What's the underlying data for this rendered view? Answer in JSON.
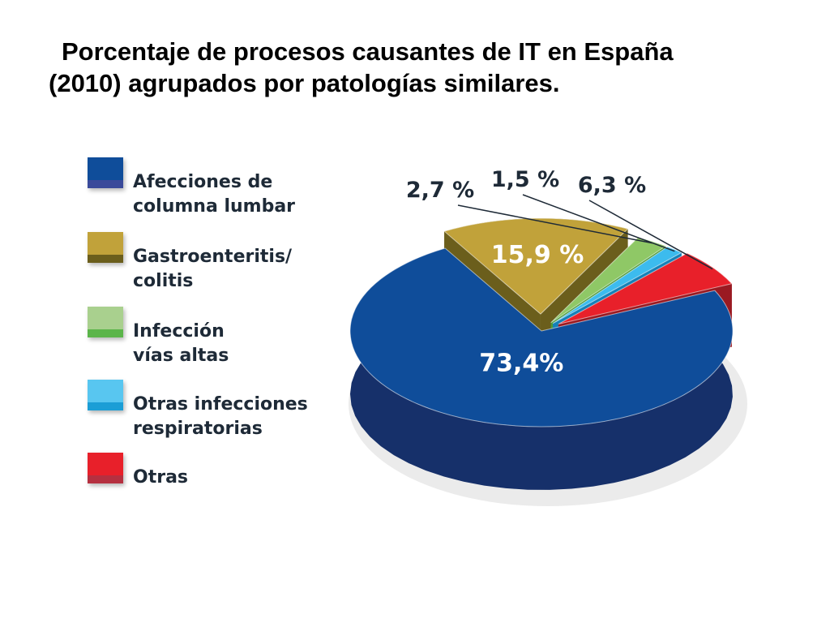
{
  "title": {
    "line1": "Porcentaje de procesos causantes de IT en España",
    "line2": "(2010) agrupados por patologías similares."
  },
  "legend": {
    "items": [
      {
        "label": "Afecciones de\ncolumna lumbar",
        "top_color": "#0f4d9a",
        "bottom_color": "#3a4a9a"
      },
      {
        "label": "Gastroenteritis/\ncolitis",
        "top_color": "#c1a23a",
        "bottom_color": "#6b5e1c"
      },
      {
        "label": "Infección\nvías altas",
        "top_color": "#a9d08e",
        "bottom_color": "#5bb54a"
      },
      {
        "label": "Otras infecciones\nrespiratorias",
        "top_color": "#58c6f0",
        "bottom_color": "#1b9ed6"
      },
      {
        "label": "Otras",
        "top_color": "#e8202a",
        "bottom_color": "#b53040"
      }
    ]
  },
  "chart_data": {
    "type": "pie",
    "title": "Porcentaje de procesos causantes de IT en España (2010) agrupados por patologías similares.",
    "slices": [
      {
        "name": "Afecciones de columna lumbar",
        "value": 73.4,
        "label": "73,4%",
        "color": "#0f4d9a",
        "side_color": "#16306a"
      },
      {
        "name": "Gastroenteritis/colitis",
        "value": 15.9,
        "label": "15,9 %",
        "color": "#c1a23a",
        "side_color": "#6b5e1c"
      },
      {
        "name": "Infección vías altas",
        "value": 2.7,
        "label": "2,7 %",
        "color": "#8fc866",
        "side_color": "#4e9a3a"
      },
      {
        "name": "Otras infecciones respiratorias",
        "value": 1.5,
        "label": "1,5 %",
        "color": "#3cbbee",
        "side_color": "#1581b8"
      },
      {
        "name": "Otras",
        "value": 6.3,
        "label": "6,3 %",
        "color": "#e8202a",
        "side_color": "#9a1a22"
      }
    ]
  }
}
